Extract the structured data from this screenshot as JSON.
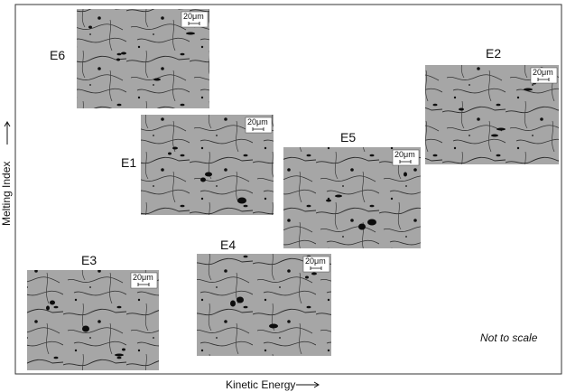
{
  "x_axis_label": "Kinetic Energy",
  "y_axis_label": "Melting Index",
  "note": "Not to scale",
  "panels": [
    {
      "label": "E6",
      "scale_bar": "20μm"
    },
    {
      "label": "E1",
      "scale_bar": "20μm"
    },
    {
      "label": "E5",
      "scale_bar": "20μm"
    },
    {
      "label": "E2",
      "scale_bar": "20μm"
    },
    {
      "label": "E3",
      "scale_bar": "20μm"
    },
    {
      "label": "E4",
      "scale_bar": "20μm"
    }
  ]
}
